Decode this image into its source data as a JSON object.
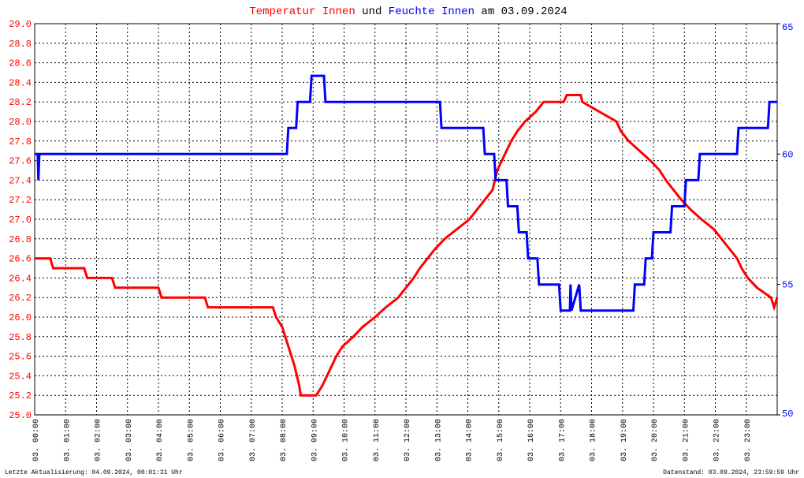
{
  "chart_data": {
    "type": "line",
    "title_joiner": "und",
    "title_suffix": "am 03.09.2024",
    "footer_left": "Letzte Aktualisierung: 04.09.2024, 00:01:31 Uhr",
    "footer_right": "Datenstand: 03.09.2024, 23:59:59 Uhr",
    "grid": true,
    "xlim": [
      0,
      24
    ],
    "xticks": [
      {
        "value": 0,
        "label": "03. 00:00"
      },
      {
        "value": 1,
        "label": "03. 01:00"
      },
      {
        "value": 2,
        "label": "03. 02:00"
      },
      {
        "value": 3,
        "label": "03. 03:00"
      },
      {
        "value": 4,
        "label": "03. 04:00"
      },
      {
        "value": 5,
        "label": "03. 05:00"
      },
      {
        "value": 6,
        "label": "03. 06:00"
      },
      {
        "value": 7,
        "label": "03. 07:00"
      },
      {
        "value": 8,
        "label": "03. 08:00"
      },
      {
        "value": 9,
        "label": "03. 09:00"
      },
      {
        "value": 10,
        "label": "03. 10:00"
      },
      {
        "value": 11,
        "label": "03. 11:00"
      },
      {
        "value": 12,
        "label": "03. 12:00"
      },
      {
        "value": 13,
        "label": "03. 13:00"
      },
      {
        "value": 14,
        "label": "03. 14:00"
      },
      {
        "value": 15,
        "label": "03. 15:00"
      },
      {
        "value": 16,
        "label": "03. 16:00"
      },
      {
        "value": 17,
        "label": "03. 17:00"
      },
      {
        "value": 18,
        "label": "03. 18:00"
      },
      {
        "value": 19,
        "label": "03. 19:00"
      },
      {
        "value": 20,
        "label": "03. 20:00"
      },
      {
        "value": 21,
        "label": "03. 21:00"
      },
      {
        "value": 22,
        "label": "03. 22:00"
      },
      {
        "value": 23,
        "label": "03. 23:00"
      }
    ],
    "ylim": [
      25,
      29
    ],
    "yticks": [
      {
        "value": 25,
        "label": "25.0"
      },
      25.2,
      25.4,
      25.6,
      25.8,
      {
        "value": 26,
        "label": "26.0"
      },
      26.2,
      26.4,
      26.6,
      26.8,
      {
        "value": 27,
        "label": "27.0"
      },
      27.2,
      27.4,
      27.6,
      27.8,
      {
        "value": 28,
        "label": "28.0"
      },
      28.2,
      28.4,
      28.6,
      28.8,
      {
        "value": 29,
        "label": "29.0"
      }
    ],
    "y2lim": [
      50,
      65
    ],
    "y2ticks": [
      50,
      55,
      60,
      65
    ],
    "series": [
      {
        "name": "Temperatur Innen",
        "color": "#ff0000",
        "x": [
          0,
          0.5,
          0.6,
          1.6,
          1.7,
          2.5,
          2.6,
          4.0,
          4.1,
          5.5,
          5.6,
          7.7,
          7.8,
          8.0,
          8.2,
          8.4,
          8.55,
          8.6,
          9.1,
          9.3,
          9.45,
          9.6,
          9.75,
          9.95,
          10.3,
          10.6,
          11.0,
          11.35,
          11.75,
          12.0,
          12.25,
          12.45,
          12.7,
          12.95,
          13.25,
          13.65,
          14.05,
          14.3,
          14.55,
          14.8,
          14.95,
          15.1,
          15.25,
          15.4,
          15.6,
          15.85,
          16.2,
          16.45,
          17.1,
          17.2,
          17.65,
          17.7,
          18.25,
          18.8,
          18.95,
          19.2,
          19.55,
          19.9,
          20.2,
          20.4,
          20.65,
          20.9,
          21.2,
          21.55,
          21.95,
          22.2,
          22.45,
          22.7,
          22.85,
          23.05,
          23.35,
          23.8,
          23.9,
          24.0
        ],
        "values": [
          26.6,
          26.6,
          26.5,
          26.5,
          26.4,
          26.4,
          26.3,
          26.3,
          26.2,
          26.2,
          26.1,
          26.1,
          26.0,
          25.9,
          25.7,
          25.5,
          25.3,
          25.2,
          25.2,
          25.3,
          25.4,
          25.5,
          25.6,
          25.7,
          25.8,
          25.9,
          26.0,
          26.1,
          26.2,
          26.3,
          26.4,
          26.5,
          26.6,
          26.7,
          26.8,
          26.9,
          27.0,
          27.1,
          27.2,
          27.3,
          27.5,
          27.6,
          27.7,
          27.8,
          27.9,
          28.0,
          28.1,
          28.2,
          28.2,
          28.27,
          28.27,
          28.2,
          28.1,
          28.0,
          27.9,
          27.8,
          27.7,
          27.6,
          27.5,
          27.4,
          27.3,
          27.2,
          27.1,
          27.0,
          26.9,
          26.8,
          26.7,
          26.6,
          26.5,
          26.4,
          26.3,
          26.2,
          26.1,
          26.2
        ]
      },
      {
        "name": "Feuchte Innen",
        "color": "#0000ff",
        "axis": "y2",
        "x": [
          0,
          0.1,
          0.12,
          0.15,
          8.15,
          8.2,
          8.45,
          8.5,
          8.9,
          8.95,
          9.35,
          9.4,
          13.1,
          13.15,
          14.5,
          14.55,
          14.85,
          14.9,
          15.25,
          15.3,
          15.6,
          15.65,
          15.9,
          15.95,
          16.25,
          16.3,
          16.95,
          17.0,
          17.3,
          17.32,
          17.35,
          17.6,
          17.65,
          19.35,
          19.4,
          19.7,
          19.75,
          19.95,
          20.0,
          20.55,
          20.6,
          21.0,
          21.05,
          21.45,
          21.5,
          22.7,
          22.75,
          23.7,
          23.75,
          24
        ],
        "values": [
          60,
          60,
          59,
          60,
          60,
          61,
          61,
          62,
          62,
          63,
          63,
          62,
          62,
          61,
          61,
          60,
          60,
          59,
          59,
          58,
          58,
          57,
          57,
          56,
          56,
          55,
          55,
          54,
          54,
          55,
          54,
          55,
          54,
          54,
          55,
          55,
          56,
          56,
          57,
          57,
          58,
          58,
          59,
          59,
          60,
          60,
          61,
          61,
          62,
          62
        ]
      }
    ]
  }
}
